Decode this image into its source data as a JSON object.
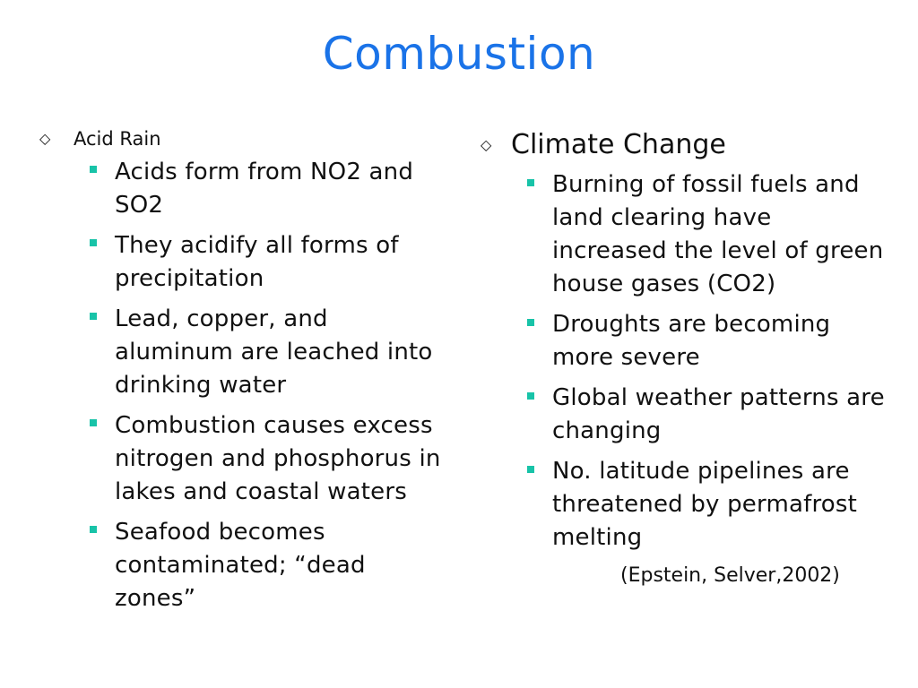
{
  "slide": {
    "title": "Combustion",
    "title_color": "#1a73e8",
    "bullet_color": "#18c3a8"
  },
  "left": {
    "heading": "Acid Rain",
    "items": [
      "Acids form from NO2 and SO2",
      "They acidify all forms of precipitation",
      "Lead, copper, and aluminum are leached into drinking water",
      "Combustion causes excess nitrogen and phosphorus in lakes and coastal waters",
      "Seafood becomes contaminated; “dead zones”"
    ]
  },
  "right": {
    "heading": "Climate Change",
    "items": [
      "Burning of fossil fuels and land clearing have increased the level of green house gases (CO2)",
      "Droughts are becoming more severe",
      "Global weather patterns are changing",
      "No. latitude pipelines are threatened by permafrost melting"
    ],
    "citation": "(Epstein, Selver,2002)"
  }
}
